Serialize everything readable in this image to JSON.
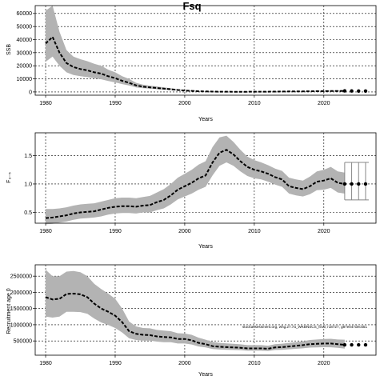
{
  "title": "Fsq",
  "footnote": "stockassessment.org, whg.27.7a_WKBNSCS_final, r18727, g87e047dec551",
  "chart_data": [
    {
      "type": "line",
      "ylabel": "SSB",
      "xlabel": "Years",
      "xlim": [
        1978.5,
        2027.5
      ],
      "ylim": [
        -2500,
        66000
      ],
      "xticks": [
        1980,
        1990,
        2000,
        2010,
        2020
      ],
      "yticks": [
        0,
        10000,
        20000,
        30000,
        40000,
        50000,
        60000
      ],
      "ytick_labels": [
        "0",
        "10000",
        "20000",
        "30000",
        "40000",
        "50000",
        "60000"
      ],
      "grid": true,
      "x": [
        1980,
        1981,
        1982,
        1983,
        1984,
        1985,
        1986,
        1987,
        1988,
        1989,
        1990,
        1991,
        1992,
        1993,
        1994,
        1995,
        1996,
        1997,
        1998,
        1999,
        2000,
        2001,
        2002,
        2003,
        2004,
        2005,
        2006,
        2007,
        2008,
        2009,
        2010,
        2011,
        2012,
        2013,
        2014,
        2015,
        2016,
        2017,
        2018,
        2019,
        2020,
        2021,
        2022,
        2023
      ],
      "y": [
        37000,
        42000,
        30000,
        22000,
        19000,
        17500,
        16500,
        15000,
        14000,
        12000,
        10500,
        8500,
        7000,
        5000,
        4000,
        3500,
        3000,
        2500,
        2000,
        1500,
        1100,
        800,
        500,
        350,
        250,
        200,
        180,
        160,
        160,
        160,
        170,
        180,
        200,
        250,
        300,
        350,
        400,
        450,
        500,
        550,
        600,
        650,
        700,
        800
      ],
      "upper": [
        62000,
        66000,
        46000,
        32000,
        27000,
        25000,
        23500,
        21500,
        20000,
        17000,
        15000,
        12000,
        10000,
        7000,
        5500,
        4800,
        4200,
        3500,
        2800,
        2100,
        1600,
        1200,
        800,
        550,
        400,
        320,
        280,
        250,
        240,
        240,
        250,
        260,
        290,
        350,
        420,
        490,
        560,
        640,
        720,
        800,
        880,
        960,
        1050,
        1200
      ],
      "lower": [
        23000,
        27000,
        20000,
        15000,
        13000,
        12000,
        11300,
        10400,
        9700,
        8300,
        7300,
        6000,
        4900,
        3500,
        2800,
        2500,
        2100,
        1750,
        1400,
        1050,
        770,
        560,
        350,
        240,
        170,
        140,
        125,
        110,
        110,
        110,
        115,
        125,
        140,
        175,
        210,
        245,
        280,
        315,
        350,
        385,
        420,
        455,
        490,
        560
      ],
      "forecast_x": [
        2023,
        2024,
        2025,
        2026
      ],
      "forecast_y": [
        800,
        750,
        700,
        700
      ]
    },
    {
      "type": "line",
      "ylabel": "F₃₋₅",
      "xlabel": "Years",
      "xlim": [
        1978.5,
        2027.5
      ],
      "ylim": [
        0.31,
        1.9
      ],
      "xticks": [
        1980,
        1990,
        2000,
        2010,
        2020
      ],
      "yticks": [
        0.5,
        1.0,
        1.5
      ],
      "ytick_labels": [
        "0.5",
        "1.0",
        "1.5"
      ],
      "grid": true,
      "x": [
        1980,
        1981,
        1982,
        1983,
        1984,
        1985,
        1986,
        1987,
        1988,
        1989,
        1990,
        1991,
        1992,
        1993,
        1994,
        1995,
        1996,
        1997,
        1998,
        1999,
        2000,
        2001,
        2002,
        2003,
        2004,
        2005,
        2006,
        2007,
        2008,
        2009,
        2010,
        2011,
        2012,
        2013,
        2014,
        2015,
        2016,
        2017,
        2018,
        2019,
        2020,
        2021,
        2022,
        2023
      ],
      "y": [
        0.4,
        0.41,
        0.43,
        0.45,
        0.48,
        0.5,
        0.51,
        0.52,
        0.55,
        0.58,
        0.6,
        0.61,
        0.61,
        0.6,
        0.62,
        0.63,
        0.68,
        0.72,
        0.8,
        0.9,
        0.96,
        1.02,
        1.1,
        1.15,
        1.38,
        1.55,
        1.6,
        1.52,
        1.4,
        1.3,
        1.25,
        1.22,
        1.18,
        1.12,
        1.08,
        0.96,
        0.93,
        0.91,
        0.96,
        1.04,
        1.06,
        1.1,
        1.02,
        1.0
      ],
      "upper": [
        0.56,
        0.56,
        0.57,
        0.59,
        0.62,
        0.64,
        0.65,
        0.66,
        0.69,
        0.72,
        0.75,
        0.76,
        0.76,
        0.75,
        0.77,
        0.79,
        0.85,
        0.91,
        1.0,
        1.11,
        1.18,
        1.25,
        1.34,
        1.4,
        1.65,
        1.82,
        1.85,
        1.74,
        1.6,
        1.48,
        1.42,
        1.38,
        1.33,
        1.27,
        1.23,
        1.11,
        1.08,
        1.06,
        1.13,
        1.22,
        1.25,
        1.3,
        1.22,
        1.2
      ],
      "lower": [
        0.29,
        0.3,
        0.32,
        0.34,
        0.37,
        0.39,
        0.4,
        0.41,
        0.43,
        0.46,
        0.48,
        0.49,
        0.49,
        0.48,
        0.5,
        0.5,
        0.54,
        0.57,
        0.64,
        0.73,
        0.78,
        0.83,
        0.9,
        0.95,
        1.15,
        1.32,
        1.38,
        1.32,
        1.22,
        1.14,
        1.1,
        1.08,
        1.04,
        0.99,
        0.95,
        0.83,
        0.8,
        0.78,
        0.82,
        0.89,
        0.9,
        0.93,
        0.85,
        0.83
      ],
      "forecast_x": [
        2023,
        2024,
        2025,
        2026
      ],
      "forecast_y": [
        1.0,
        1.0,
        1.0,
        1.0
      ],
      "forecast_upper": 1.38,
      "forecast_lower": 0.72
    },
    {
      "type": "line",
      "ylabel": "Recruitment age 0",
      "xlabel": "Years",
      "xlim": [
        1978.5,
        2027.5
      ],
      "ylim": [
        60000,
        2850000
      ],
      "xticks": [
        1980,
        1990,
        2000,
        2010,
        2020
      ],
      "yticks": [
        500000,
        1000000,
        1500000,
        2000000,
        2500000
      ],
      "ytick_labels": [
        "500000",
        "1000000",
        "1500000",
        "2000000",
        "2500000"
      ],
      "grid": true,
      "x": [
        1980,
        1981,
        1982,
        1983,
        1984,
        1985,
        1986,
        1987,
        1988,
        1989,
        1990,
        1991,
        1992,
        1993,
        1994,
        1995,
        1996,
        1997,
        1998,
        1999,
        2000,
        2001,
        2002,
        2003,
        2004,
        2005,
        2006,
        2007,
        2008,
        2009,
        2010,
        2011,
        2012,
        2013,
        2014,
        2015,
        2016,
        2017,
        2018,
        2019,
        2020,
        2021,
        2022,
        2023
      ],
      "y": [
        1850000,
        1780000,
        1800000,
        1950000,
        1960000,
        1940000,
        1850000,
        1650000,
        1500000,
        1400000,
        1280000,
        1080000,
        800000,
        720000,
        690000,
        680000,
        640000,
        620000,
        610000,
        560000,
        560000,
        520000,
        440000,
        400000,
        340000,
        320000,
        310000,
        300000,
        290000,
        270000,
        270000,
        270000,
        260000,
        300000,
        310000,
        330000,
        350000,
        370000,
        400000,
        410000,
        420000,
        420000,
        400000,
        380000
      ],
      "upper": [
        2700000,
        2500000,
        2500000,
        2640000,
        2660000,
        2620000,
        2500000,
        2260000,
        2100000,
        1960000,
        1800000,
        1500000,
        1100000,
        950000,
        900000,
        890000,
        840000,
        820000,
        800000,
        740000,
        730000,
        690000,
        600000,
        540000,
        470000,
        440000,
        425000,
        410000,
        395000,
        370000,
        370000,
        370000,
        355000,
        400000,
        415000,
        440000,
        465000,
        490000,
        530000,
        545000,
        560000,
        565000,
        545000,
        540000
      ],
      "lower": [
        1250000,
        1220000,
        1250000,
        1400000,
        1400000,
        1390000,
        1340000,
        1190000,
        1070000,
        990000,
        900000,
        760000,
        580000,
        530000,
        510000,
        510000,
        480000,
        460000,
        460000,
        420000,
        420000,
        390000,
        330000,
        300000,
        250000,
        235000,
        228000,
        220000,
        212000,
        198000,
        198000,
        198000,
        190000,
        220000,
        228000,
        242000,
        257000,
        272000,
        294000,
        300000,
        308000,
        305000,
        290000,
        265000
      ],
      "forecast_x": [
        2023,
        2024,
        2025,
        2026
      ],
      "forecast_y": [
        380000,
        380000,
        380000,
        380000
      ]
    }
  ]
}
